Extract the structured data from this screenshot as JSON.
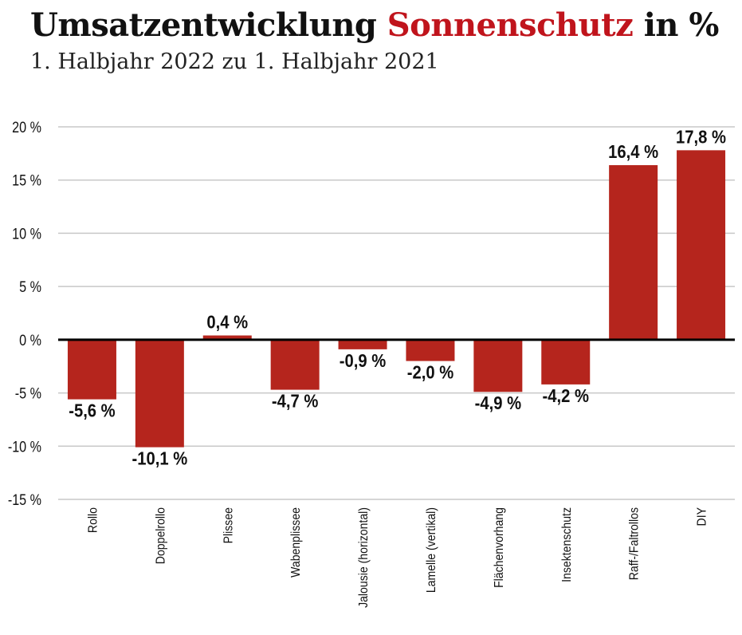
{
  "title": {
    "part1": "Umsatzentwicklung ",
    "part2": "Sonnenschutz",
    "part3": " in %"
  },
  "subtitle": "1. Halbjahr 2022 zu 1. Halbjahr 2021",
  "colors": {
    "bar": "#b5251d",
    "title_accent": "#c0141c",
    "grid": "#c8c8c8",
    "zero_line": "#000000"
  },
  "chart_data": {
    "type": "bar",
    "categories": [
      "Rollo",
      "Doppelrollo",
      "Plissee",
      "Wabenplissee",
      "Jalousie (horizontal)",
      "Lamelle (vertikal)",
      "Flächenvorhang",
      "Insektenschutz",
      "Raff-/Faltrollos",
      "DIY"
    ],
    "values": [
      -5.6,
      -10.1,
      0.4,
      -4.7,
      -0.9,
      -2.0,
      -4.9,
      -4.2,
      16.4,
      17.8
    ],
    "data_labels": [
      "-5,6 %",
      "-10,1 %",
      "0,4 %",
      "-4,7 %",
      "-0,9 %",
      "-2,0 %",
      "-4,9 %",
      "-4,2 %",
      "16,4 %",
      "17,8 %"
    ],
    "yticks": [
      20,
      15,
      10,
      5,
      0,
      -5,
      -10,
      -15
    ],
    "ytick_labels": [
      "20 %",
      "15 %",
      "10 %",
      "5 %",
      "0 %",
      "-5 %",
      "-10 %",
      "-15 %"
    ],
    "ylim": [
      -15,
      20
    ],
    "grid": true,
    "legend": "none"
  }
}
